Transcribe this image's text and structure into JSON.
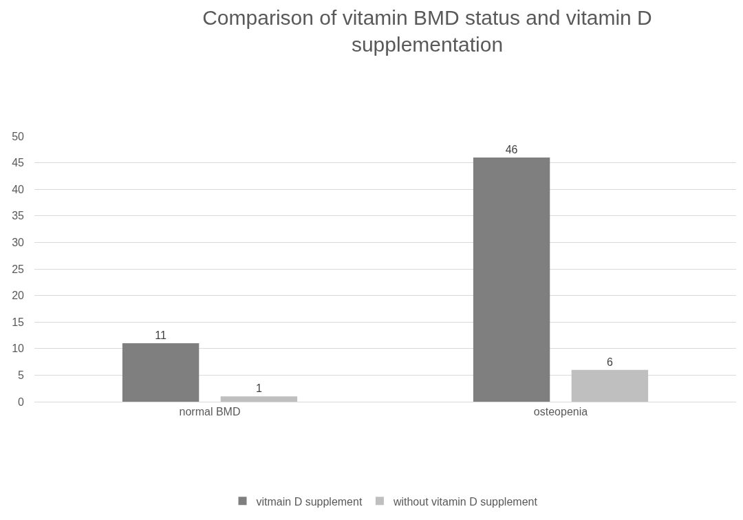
{
  "chart_data": {
    "type": "bar",
    "title": "Comparison of vitamin BMD status and vitamin D supplementation",
    "categories": [
      "normal BMD",
      "osteopenia"
    ],
    "series": [
      {
        "name": "vitmain D supplement",
        "color": "#7f7f7f",
        "values": [
          11,
          46
        ]
      },
      {
        "name": "without vitamin D supplement",
        "color": "#bfbfbf",
        "values": [
          1,
          6
        ]
      }
    ],
    "ylim": [
      0,
      50
    ],
    "yticks": [
      0,
      5,
      10,
      15,
      20,
      25,
      30,
      35,
      40,
      45,
      50
    ],
    "grid": "y",
    "legend": "bottom",
    "data_labels": true
  }
}
